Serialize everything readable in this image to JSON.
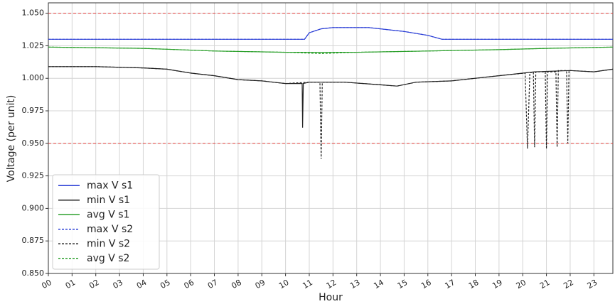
{
  "chart_data": {
    "type": "line",
    "y_label": "Voltage (per unit)",
    "x_label": "Hour",
    "xlim": [
      0,
      23.8
    ],
    "ylim": [
      0.85,
      1.058
    ],
    "xticks": [
      {
        "value": 0,
        "label": "00"
      },
      {
        "value": 1,
        "label": "01"
      },
      {
        "value": 2,
        "label": "02"
      },
      {
        "value": 3,
        "label": "03"
      },
      {
        "value": 4,
        "label": "04"
      },
      {
        "value": 5,
        "label": "05"
      },
      {
        "value": 6,
        "label": "06"
      },
      {
        "value": 7,
        "label": "07"
      },
      {
        "value": 8,
        "label": "08"
      },
      {
        "value": 9,
        "label": "09"
      },
      10,
      11,
      12,
      13,
      14,
      15,
      16,
      17,
      18,
      19,
      20,
      21,
      22,
      23
    ],
    "yticks": [
      {
        "value": 0.85,
        "label": "0.850"
      },
      0.875,
      {
        "value": 0.9,
        "label": "0.900"
      },
      0.925,
      {
        "value": 0.95,
        "label": "0.950"
      },
      0.975,
      {
        "value": 1.0,
        "label": "1.000"
      },
      1.025,
      {
        "value": 1.05,
        "label": "1.050"
      }
    ],
    "grid": true,
    "legend": "lower left",
    "reference_lines": {
      "values": [
        1.05,
        0.95
      ],
      "color": "#e8413f",
      "linestyle": "dashed"
    },
    "series": [
      {
        "name": "max V s1",
        "color": "#2b3fd6",
        "linestyle": "solid",
        "x": [
          0,
          10.8,
          11,
          11.5,
          12,
          13.5,
          14,
          15,
          16,
          16.6,
          23.8
        ],
        "values": [
          1.03,
          1.03,
          1.035,
          1.038,
          1.039,
          1.039,
          1.038,
          1.036,
          1.033,
          1.03,
          1.03
        ]
      },
      {
        "name": "min V s1",
        "color": "#222222",
        "linestyle": "solid",
        "x": [
          0,
          2,
          4,
          5,
          6,
          7,
          8,
          9,
          10,
          10.7,
          10.72,
          10.75,
          11,
          12.5,
          14,
          14.7,
          15.5,
          17,
          18,
          19,
          20.5,
          22,
          23,
          23.8
        ],
        "values": [
          1.009,
          1.009,
          1.008,
          1.007,
          1.004,
          1.002,
          0.999,
          0.998,
          0.996,
          0.996,
          0.962,
          0.996,
          0.997,
          0.997,
          0.995,
          0.994,
          0.997,
          0.998,
          1.0,
          1.002,
          1.005,
          1.006,
          1.005,
          1.007
        ]
      },
      {
        "name": "avg V s1",
        "color": "#2ca02c",
        "linestyle": "solid",
        "x": [
          0,
          4,
          7,
          10,
          13,
          16,
          19,
          21,
          23.8
        ],
        "values": [
          1.024,
          1.023,
          1.021,
          1.02,
          1.02,
          1.021,
          1.022,
          1.023,
          1.024
        ]
      },
      {
        "name": "max V s2",
        "color": "#2b3fd6",
        "linestyle": "dashed",
        "x": [
          0,
          10.8,
          11,
          11.5,
          12,
          13.5,
          14,
          15,
          16,
          16.6,
          23.8
        ],
        "values": [
          1.03,
          1.03,
          1.035,
          1.038,
          1.039,
          1.039,
          1.038,
          1.036,
          1.033,
          1.03,
          1.03
        ]
      },
      {
        "name": "min V s2",
        "color": "#222222",
        "linestyle": "dashed",
        "x": [
          0,
          2,
          4,
          5,
          6,
          7,
          8,
          9,
          10,
          11,
          11.45,
          11.5,
          11.55,
          12.5,
          14,
          14.7,
          15.5,
          17,
          18,
          19,
          20.1,
          20.2,
          20.3,
          20.45,
          20.5,
          20.55,
          20.95,
          21,
          21.05,
          21.4,
          21.45,
          21.5,
          21.85,
          21.9,
          21.95,
          22,
          23,
          23.8
        ],
        "values": [
          1.009,
          1.009,
          1.008,
          1.007,
          1.004,
          1.002,
          0.999,
          0.998,
          0.996,
          0.997,
          0.997,
          0.938,
          0.997,
          0.997,
          0.995,
          0.994,
          0.997,
          0.998,
          1.0,
          1.002,
          1.004,
          0.946,
          1.004,
          1.005,
          0.947,
          1.005,
          1.005,
          0.946,
          1.005,
          1.005,
          0.947,
          1.006,
          1.006,
          0.95,
          1.006,
          1.006,
          1.005,
          1.007
        ]
      },
      {
        "name": "avg V s2",
        "color": "#2ca02c",
        "linestyle": "dashed",
        "x": [
          0,
          4,
          7,
          10,
          11.5,
          13,
          16,
          19,
          21,
          23.8
        ],
        "values": [
          1.024,
          1.023,
          1.021,
          1.02,
          1.019,
          1.02,
          1.021,
          1.022,
          1.023,
          1.024
        ]
      }
    ]
  }
}
